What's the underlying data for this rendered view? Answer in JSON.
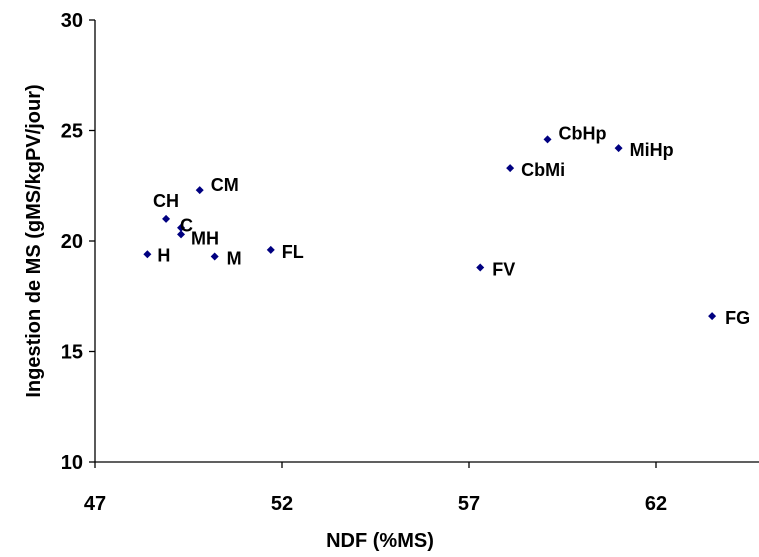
{
  "chart_data": {
    "type": "scatter",
    "xlabel": "NDF (%MS)",
    "ylabel": "Ingestion de MS (gMS/kgPV/jour)",
    "xlim": [
      47,
      64.5
    ],
    "ylim": [
      10,
      30
    ],
    "x_ticks": [
      "47",
      "52",
      "57",
      "62"
    ],
    "y_ticks": [
      "10",
      "15",
      "20",
      "25",
      "30"
    ],
    "grid": false,
    "legend": "none",
    "point_color": "#000080",
    "points": [
      {
        "label": "H",
        "x": 48.4,
        "y": 19.4
      },
      {
        "label": "CH",
        "x": 48.9,
        "y": 21.0
      },
      {
        "label": "C",
        "x": 49.3,
        "y": 20.6
      },
      {
        "label": "MH",
        "x": 49.3,
        "y": 20.3
      },
      {
        "label": "CM",
        "x": 49.8,
        "y": 22.3
      },
      {
        "label": "M",
        "x": 50.2,
        "y": 19.3
      },
      {
        "label": "FL",
        "x": 51.7,
        "y": 19.6
      },
      {
        "label": "FV",
        "x": 57.3,
        "y": 18.8
      },
      {
        "label": "CbMi",
        "x": 58.1,
        "y": 23.3
      },
      {
        "label": "CbHp",
        "x": 59.1,
        "y": 24.6
      },
      {
        "label": "MiHp",
        "x": 61.0,
        "y": 24.2
      },
      {
        "label": "FG",
        "x": 63.5,
        "y": 16.6
      }
    ]
  }
}
